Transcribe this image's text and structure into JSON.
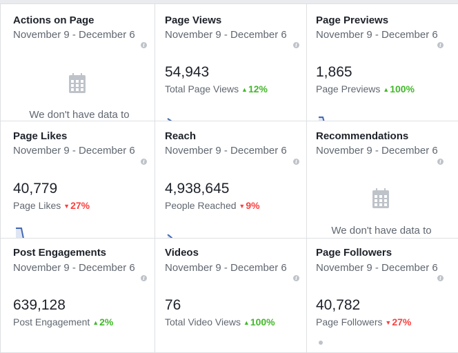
{
  "date_range": "November 9 - December 6",
  "cards": {
    "actions": {
      "title": "Actions on Page",
      "empty_text": "We don't have data to"
    },
    "views": {
      "title": "Page Views",
      "value": "54,943",
      "label": "Total Page Views",
      "delta": "12%",
      "trend": "up"
    },
    "previews": {
      "title": "Page Previews",
      "value": "1,865",
      "label": "Page Previews",
      "delta": "100%",
      "trend": "up"
    },
    "likes": {
      "title": "Page Likes",
      "value": "40,779",
      "label": "Page Likes",
      "delta": "27%",
      "trend": "down"
    },
    "reach": {
      "title": "Reach",
      "value": "4,938,645",
      "label": "People Reached",
      "delta": "9%",
      "trend": "down"
    },
    "recommendations": {
      "title": "Recommendations",
      "empty_text": "We don't have data to"
    },
    "engagement": {
      "title": "Post Engagements",
      "value": "639,128",
      "label": "Post Engagement",
      "delta": "2%",
      "trend": "up"
    },
    "videos": {
      "title": "Videos",
      "value": "76",
      "label": "Total Video Views",
      "delta": "100%",
      "trend": "up"
    },
    "followers": {
      "title": "Page Followers",
      "value": "40,782",
      "label": "Page Followers",
      "delta": "27%",
      "trend": "down"
    }
  },
  "colors": {
    "line": "#4267b2",
    "fill": "#dfe6f3",
    "up": "#42b72a",
    "down": "#fa3e3e"
  }
}
